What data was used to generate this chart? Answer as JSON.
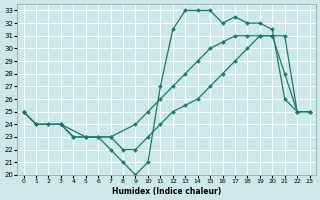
{
  "xlabel": "Humidex (Indice chaleur)",
  "bg_color": "#cce8e8",
  "grid_color": "#ffffff",
  "line_color": "#1a7a6e",
  "xlim": [
    -0.5,
    23.5
  ],
  "ylim": [
    20,
    33.5
  ],
  "xticks": [
    0,
    1,
    2,
    3,
    4,
    5,
    6,
    7,
    8,
    9,
    10,
    11,
    12,
    13,
    14,
    15,
    16,
    17,
    18,
    19,
    20,
    21,
    22,
    23
  ],
  "yticks": [
    20,
    21,
    22,
    23,
    24,
    25,
    26,
    27,
    28,
    29,
    30,
    31,
    32,
    33
  ],
  "lines": [
    {
      "x": [
        0,
        1,
        2,
        3,
        4,
        5,
        6,
        7,
        8,
        9,
        10,
        11,
        12,
        13,
        14,
        15,
        16,
        17,
        18,
        19,
        20,
        21,
        22,
        23
      ],
      "y": [
        25,
        24,
        24,
        24,
        23,
        23,
        23,
        22,
        21,
        20,
        21,
        27,
        31.5,
        33,
        33,
        33,
        32,
        32.5,
        32,
        32,
        31.5,
        26,
        25,
        25
      ]
    },
    {
      "x": [
        0,
        1,
        3,
        5,
        7,
        9,
        10,
        11,
        12,
        13,
        14,
        15,
        16,
        17,
        18,
        19,
        20,
        21,
        22,
        23
      ],
      "y": [
        25,
        24,
        24,
        23,
        23,
        24,
        25,
        26,
        27,
        28,
        29,
        30,
        30.5,
        31,
        31,
        31,
        31,
        31,
        25,
        25
      ]
    },
    {
      "x": [
        0,
        1,
        2,
        3,
        4,
        5,
        6,
        7,
        8,
        9,
        10,
        11,
        12,
        13,
        14,
        15,
        16,
        17,
        18,
        19,
        20,
        21,
        22,
        23
      ],
      "y": [
        25,
        24,
        24,
        24,
        23,
        23,
        23,
        23,
        22,
        22,
        23,
        24,
        25,
        25.5,
        26,
        27,
        28,
        29,
        30,
        31,
        31,
        28,
        25,
        25
      ]
    }
  ]
}
